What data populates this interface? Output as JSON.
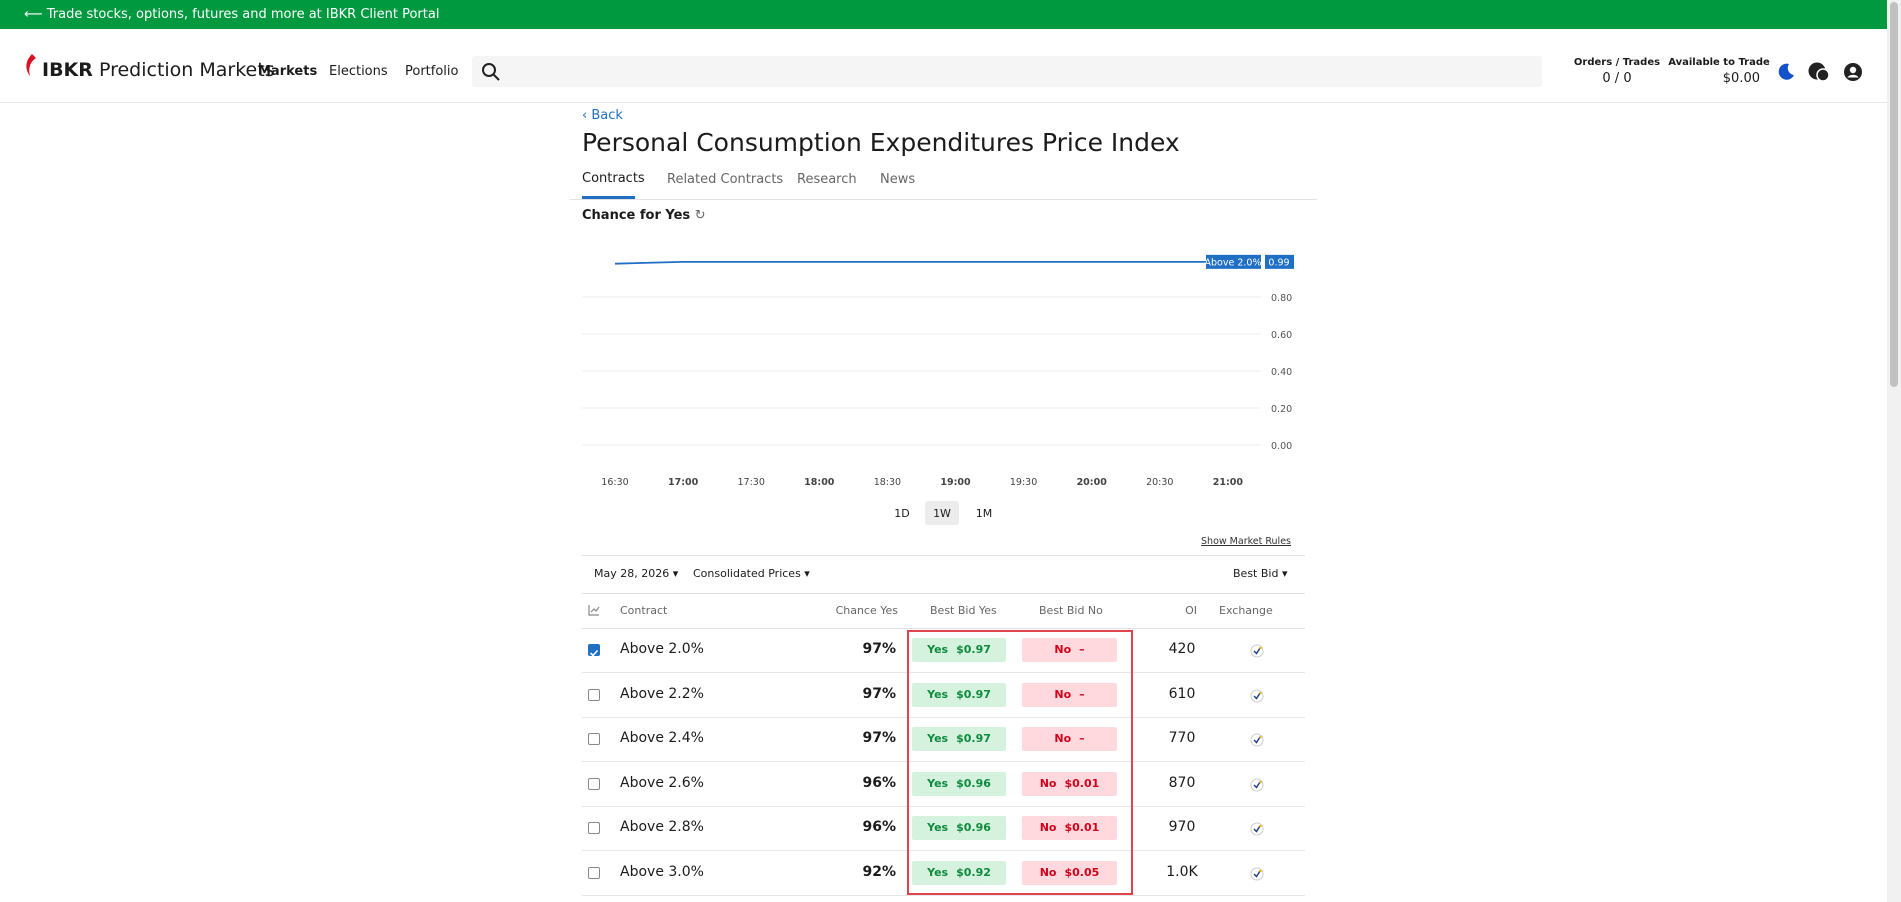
{
  "banner": "Trade stocks, options, futures and more at IBKR Client Portal",
  "header": {
    "brand_bold": "IBKR",
    "brand": "Prediction Markets",
    "nav": [
      "Markets",
      "Elections",
      "Portfolio"
    ],
    "orders_label": "Orders / Trades",
    "orders_value": "0 / 0",
    "available_label": "Available to Trade",
    "available_value": "$0.00"
  },
  "back": "Back",
  "title": "Personal Consumption Expenditures Price Index",
  "tabs": [
    "Contracts",
    "Related Contracts",
    "Research",
    "News"
  ],
  "chart_data": {
    "type": "line",
    "title": "Chance for Yes",
    "categories": [
      "16:30",
      "17:00",
      "17:30",
      "18:00",
      "18:30",
      "19:00",
      "19:30",
      "20:00",
      "20:30",
      "21:00"
    ],
    "series": [
      {
        "name": "Above 2.0%",
        "color": "#1f6fc5",
        "values": [
          0.98,
          0.99,
          0.99,
          0.99,
          0.99,
          0.99,
          0.99,
          0.99,
          0.99,
          0.99
        ],
        "value_labels": [
          null,
          null,
          null,
          null,
          null,
          null,
          null,
          null,
          null,
          "0.99"
        ]
      }
    ],
    "ylim": [
      0,
      1
    ],
    "yticks": [
      {
        "value": 0,
        "label": "0.00"
      },
      {
        "value": 0.2,
        "label": "0.20"
      },
      {
        "value": 0.4,
        "label": "0.40"
      },
      {
        "value": 0.6,
        "label": "0.60"
      },
      {
        "value": 0.8,
        "label": "0.80"
      }
    ],
    "grid": true
  },
  "ranges": [
    "1D",
    "1W",
    "1M"
  ],
  "show_rules": "Show Market Rules",
  "filters": {
    "date": "May 28, 2026",
    "prices": "Consolidated Prices",
    "sort": "Best Bid"
  },
  "table": {
    "columns": [
      "Contract",
      "Chance Yes",
      "Best Bid Yes",
      "Best Bid No",
      "OI",
      "Exchange"
    ],
    "yes_label": "Yes",
    "no_label": "No",
    "rows": [
      {
        "contract": "Above 2.0%",
        "chance": "97%",
        "yes": "$0.97",
        "no": "–",
        "oi": "420",
        "checked": true
      },
      {
        "contract": "Above 2.2%",
        "chance": "97%",
        "yes": "$0.97",
        "no": "–",
        "oi": "610",
        "checked": false
      },
      {
        "contract": "Above 2.4%",
        "chance": "97%",
        "yes": "$0.97",
        "no": "–",
        "oi": "770",
        "checked": false
      },
      {
        "contract": "Above 2.6%",
        "chance": "96%",
        "yes": "$0.96",
        "no": "$0.01",
        "oi": "870",
        "checked": false
      },
      {
        "contract": "Above 2.8%",
        "chance": "96%",
        "yes": "$0.96",
        "no": "$0.01",
        "oi": "970",
        "checked": false
      },
      {
        "contract": "Above 3.0%",
        "chance": "92%",
        "yes": "$0.92",
        "no": "$0.05",
        "oi": "1.0K",
        "checked": false
      }
    ]
  }
}
